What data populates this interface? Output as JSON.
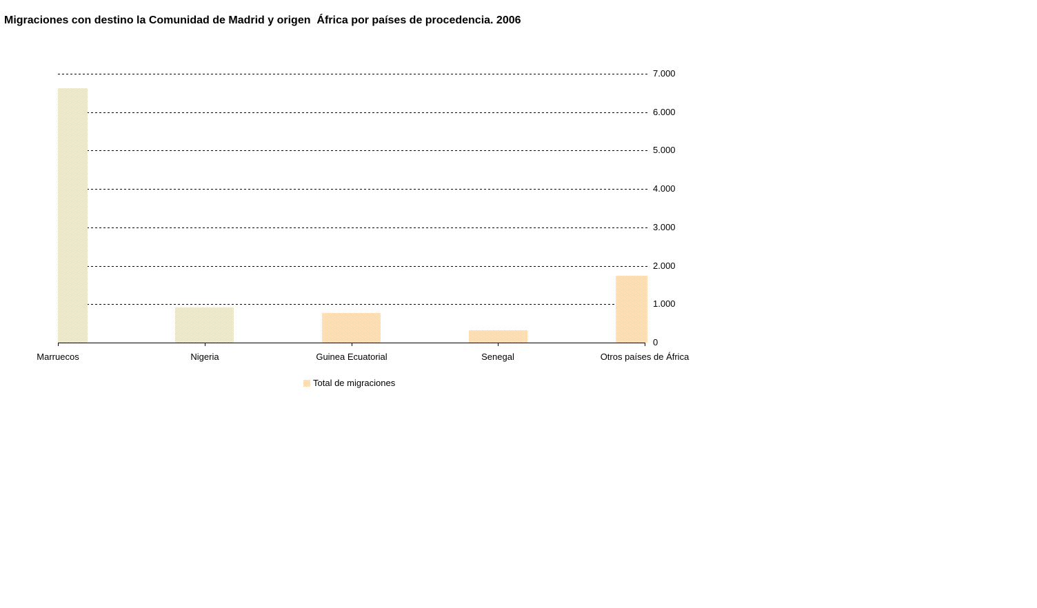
{
  "chart_data": {
    "type": "bar",
    "title": "Migraciones con destino la Comunidad de Madrid y origen  África por países de procedencia. 2006",
    "categories": [
      "Marruecos",
      "Nigeria",
      "Guinea Ecuatorial",
      "Senegal",
      "Otros países de África"
    ],
    "series": [
      {
        "name": "Total de migraciones",
        "values": [
          6620,
          915,
          770,
          320,
          1740
        ]
      }
    ],
    "ylim": [
      0,
      7000
    ],
    "yticks": [
      {
        "value": 7000,
        "label": "7.000"
      },
      {
        "value": 6000,
        "label": "6.000"
      },
      {
        "value": 5000,
        "label": "5.000"
      },
      {
        "value": 4000,
        "label": "4.000"
      },
      {
        "value": 3000,
        "label": "3.000"
      },
      {
        "value": 2000,
        "label": "2.000"
      },
      {
        "value": 1000,
        "label": "1.000"
      },
      {
        "value": 0,
        "label": "0"
      }
    ],
    "grid": "horizontal-dotted",
    "legend_position": "bottom-center",
    "colors": {
      "bar_dither_light": "#FFFBDC",
      "bar_dither_dark": "#F8CBA0",
      "axis": "#000000",
      "text": "#000000",
      "background": "#FFFFFF"
    }
  }
}
